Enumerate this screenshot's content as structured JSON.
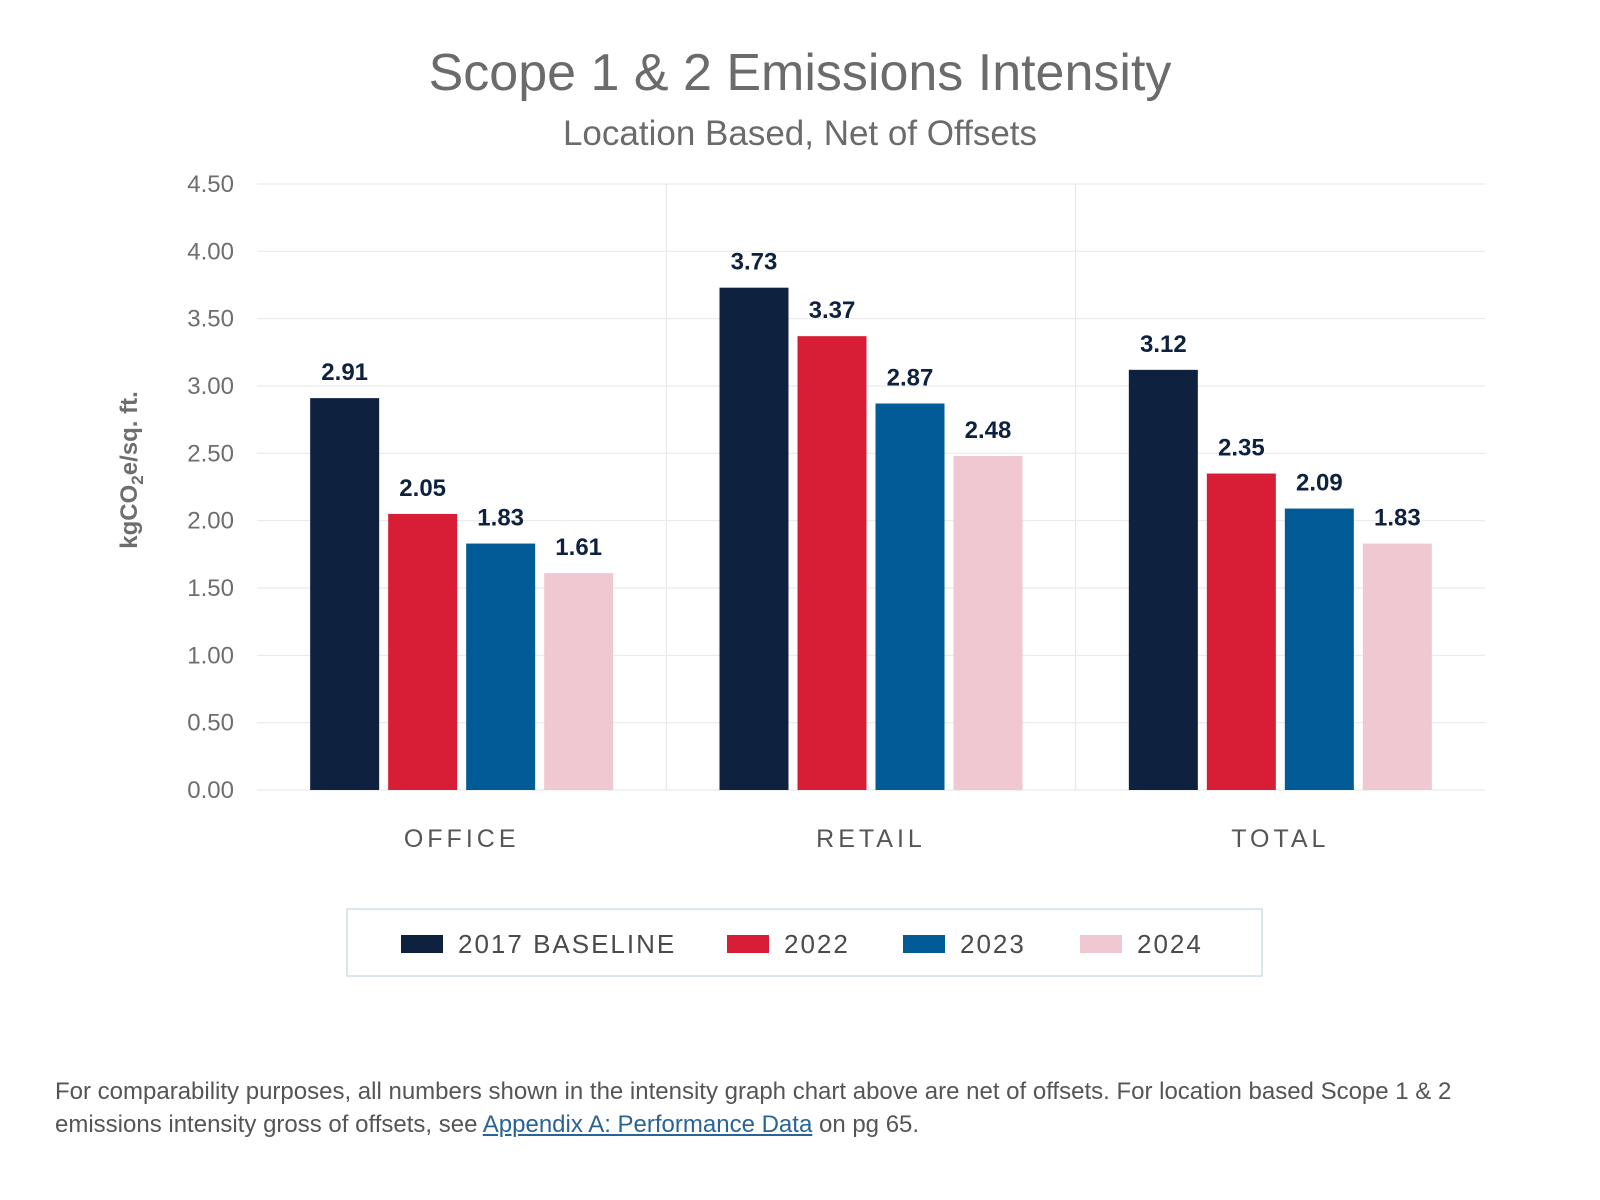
{
  "chart_data": {
    "type": "bar",
    "title": "Scope 1 & 2 Emissions Intensity",
    "subtitle": "Location Based, Net of Offsets",
    "ylabel_parts": [
      "kgCO",
      "2",
      "e/sq. ft."
    ],
    "xlabel": "",
    "ylim": [
      0,
      4.5
    ],
    "yticks": [
      "0.00",
      "0.50",
      "1.00",
      "1.50",
      "2.00",
      "2.50",
      "3.00",
      "3.50",
      "4.00",
      "4.50"
    ],
    "categories": [
      "OFFICE",
      "RETAIL",
      "TOTAL"
    ],
    "series": [
      {
        "name": "2017 BASELINE",
        "color": "#0e2240",
        "values": [
          2.91,
          3.73,
          3.12
        ],
        "labels": [
          "2.91",
          "3.73",
          "3.12"
        ]
      },
      {
        "name": "2022",
        "color": "#d81e36",
        "values": [
          2.05,
          3.37,
          2.35
        ],
        "labels": [
          "2.05",
          "3.37",
          "2.35"
        ]
      },
      {
        "name": "2023",
        "color": "#005b96",
        "values": [
          1.83,
          2.87,
          2.09
        ],
        "labels": [
          "1.83",
          "2.87",
          "2.09"
        ]
      },
      {
        "name": "2024",
        "color": "#efc8d1",
        "values": [
          1.61,
          2.48,
          1.83
        ],
        "labels": [
          "1.61",
          "2.48",
          "1.83"
        ]
      }
    ],
    "grid": true,
    "legend": "bottom"
  },
  "footnote": {
    "text_before": "For comparability purposes, all numbers shown in the intensity graph chart above are net of offsets. For location based Scope 1 & 2 emissions intensity gross of offsets, see ",
    "link_text": "Appendix A: Performance Data",
    "text_after": " on pg 65."
  }
}
